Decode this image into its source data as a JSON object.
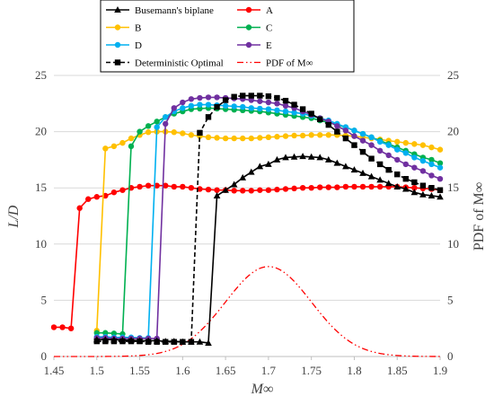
{
  "chart_data": {
    "type": "line",
    "xlabel": "M∞",
    "ylabel_left": "L/D",
    "ylabel_right": "PDF of M∞",
    "xlim": [
      1.45,
      1.9
    ],
    "ylim": [
      0,
      25
    ],
    "x_ticks": [
      "1.45",
      "1.5",
      "1.55",
      "1.6",
      "1.65",
      "1.7",
      "1.75",
      "1.8",
      "1.85",
      "1.9"
    ],
    "y_ticks": [
      "0",
      "5",
      "10",
      "15",
      "20",
      "25"
    ],
    "grid": "horizontal",
    "legend_position": "top-center",
    "series": [
      {
        "name": "Busemann's biplane",
        "color": "#000000",
        "marker": "triangle",
        "dash": "solid",
        "points": [
          [
            1.5,
            1.5
          ],
          [
            1.51,
            1.5
          ],
          [
            1.52,
            1.5
          ],
          [
            1.53,
            1.45
          ],
          [
            1.54,
            1.45
          ],
          [
            1.55,
            1.4
          ],
          [
            1.56,
            1.4
          ],
          [
            1.57,
            1.4
          ],
          [
            1.58,
            1.35
          ],
          [
            1.59,
            1.35
          ],
          [
            1.6,
            1.3
          ],
          [
            1.61,
            1.3
          ],
          [
            1.62,
            1.3
          ],
          [
            1.63,
            1.2
          ],
          [
            1.64,
            14.3
          ],
          [
            1.65,
            14.8
          ],
          [
            1.66,
            15.3
          ],
          [
            1.67,
            15.9
          ],
          [
            1.68,
            16.4
          ],
          [
            1.69,
            16.9
          ],
          [
            1.7,
            17.1
          ],
          [
            1.71,
            17.5
          ],
          [
            1.72,
            17.7
          ],
          [
            1.73,
            17.75
          ],
          [
            1.74,
            17.8
          ],
          [
            1.75,
            17.75
          ],
          [
            1.76,
            17.7
          ],
          [
            1.77,
            17.5
          ],
          [
            1.78,
            17.2
          ],
          [
            1.79,
            16.9
          ],
          [
            1.8,
            16.6
          ],
          [
            1.81,
            16.3
          ],
          [
            1.82,
            16.0
          ],
          [
            1.83,
            15.7
          ],
          [
            1.84,
            15.4
          ],
          [
            1.85,
            15.1
          ],
          [
            1.86,
            14.9
          ],
          [
            1.87,
            14.6
          ],
          [
            1.88,
            14.4
          ],
          [
            1.89,
            14.3
          ],
          [
            1.9,
            14.2
          ]
        ]
      },
      {
        "name": "A",
        "color": "#ff0000",
        "marker": "circle",
        "dash": "solid",
        "points": [
          [
            1.45,
            2.6
          ],
          [
            1.46,
            2.6
          ],
          [
            1.47,
            2.5
          ],
          [
            1.48,
            13.2
          ],
          [
            1.49,
            14.0
          ],
          [
            1.5,
            14.2
          ],
          [
            1.51,
            14.3
          ],
          [
            1.52,
            14.6
          ],
          [
            1.53,
            14.8
          ],
          [
            1.54,
            15.0
          ],
          [
            1.55,
            15.1
          ],
          [
            1.56,
            15.2
          ],
          [
            1.57,
            15.2
          ],
          [
            1.58,
            15.2
          ],
          [
            1.59,
            15.1
          ],
          [
            1.6,
            15.1
          ],
          [
            1.61,
            15.0
          ],
          [
            1.62,
            14.9
          ],
          [
            1.63,
            14.85
          ],
          [
            1.64,
            14.8
          ],
          [
            1.65,
            14.8
          ],
          [
            1.66,
            14.75
          ],
          [
            1.67,
            14.75
          ],
          [
            1.68,
            14.75
          ],
          [
            1.69,
            14.8
          ],
          [
            1.7,
            14.8
          ],
          [
            1.71,
            14.85
          ],
          [
            1.72,
            14.9
          ],
          [
            1.73,
            14.95
          ],
          [
            1.74,
            15.0
          ],
          [
            1.75,
            15.0
          ],
          [
            1.76,
            15.05
          ],
          [
            1.77,
            15.05
          ],
          [
            1.78,
            15.05
          ],
          [
            1.79,
            15.1
          ],
          [
            1.8,
            15.1
          ],
          [
            1.81,
            15.1
          ],
          [
            1.82,
            15.1
          ],
          [
            1.83,
            15.1
          ],
          [
            1.84,
            15.1
          ],
          [
            1.85,
            15.1
          ],
          [
            1.86,
            15.05
          ],
          [
            1.87,
            15.0
          ],
          [
            1.88,
            14.95
          ],
          [
            1.89,
            14.9
          ],
          [
            1.9,
            14.8
          ]
        ]
      },
      {
        "name": "B",
        "color": "#ffc000",
        "marker": "circle",
        "dash": "solid",
        "points": [
          [
            1.5,
            2.3
          ],
          [
            1.51,
            18.5
          ],
          [
            1.52,
            18.7
          ],
          [
            1.53,
            19.0
          ],
          [
            1.54,
            19.4
          ],
          [
            1.55,
            19.7
          ],
          [
            1.56,
            19.95
          ],
          [
            1.57,
            20.0
          ],
          [
            1.58,
            20.0
          ],
          [
            1.59,
            19.95
          ],
          [
            1.6,
            19.85
          ],
          [
            1.61,
            19.7
          ],
          [
            1.62,
            19.6
          ],
          [
            1.63,
            19.5
          ],
          [
            1.64,
            19.45
          ],
          [
            1.65,
            19.4
          ],
          [
            1.66,
            19.4
          ],
          [
            1.67,
            19.4
          ],
          [
            1.68,
            19.4
          ],
          [
            1.69,
            19.45
          ],
          [
            1.7,
            19.5
          ],
          [
            1.71,
            19.55
          ],
          [
            1.72,
            19.6
          ],
          [
            1.73,
            19.65
          ],
          [
            1.74,
            19.65
          ],
          [
            1.75,
            19.7
          ],
          [
            1.76,
            19.7
          ],
          [
            1.77,
            19.7
          ],
          [
            1.78,
            19.7
          ],
          [
            1.79,
            19.65
          ],
          [
            1.8,
            19.6
          ],
          [
            1.81,
            19.5
          ],
          [
            1.82,
            19.4
          ],
          [
            1.83,
            19.3
          ],
          [
            1.84,
            19.2
          ],
          [
            1.85,
            19.1
          ],
          [
            1.86,
            19.0
          ],
          [
            1.87,
            18.9
          ],
          [
            1.88,
            18.8
          ],
          [
            1.89,
            18.6
          ],
          [
            1.9,
            18.4
          ]
        ]
      },
      {
        "name": "C",
        "color": "#00b050",
        "marker": "circle",
        "dash": "solid",
        "points": [
          [
            1.5,
            2.1
          ],
          [
            1.51,
            2.1
          ],
          [
            1.52,
            2.05
          ],
          [
            1.53,
            2.0
          ],
          [
            1.54,
            18.7
          ],
          [
            1.55,
            20.0
          ],
          [
            1.56,
            20.5
          ],
          [
            1.57,
            20.9
          ],
          [
            1.58,
            21.3
          ],
          [
            1.59,
            21.6
          ],
          [
            1.6,
            21.8
          ],
          [
            1.61,
            22.0
          ],
          [
            1.62,
            22.05
          ],
          [
            1.63,
            22.1
          ],
          [
            1.64,
            22.05
          ],
          [
            1.65,
            22.0
          ],
          [
            1.66,
            21.95
          ],
          [
            1.67,
            21.9
          ],
          [
            1.68,
            21.85
          ],
          [
            1.69,
            21.8
          ],
          [
            1.7,
            21.7
          ],
          [
            1.71,
            21.6
          ],
          [
            1.72,
            21.5
          ],
          [
            1.73,
            21.4
          ],
          [
            1.74,
            21.3
          ],
          [
            1.75,
            21.2
          ],
          [
            1.76,
            21.0
          ],
          [
            1.77,
            20.8
          ],
          [
            1.78,
            20.6
          ],
          [
            1.79,
            20.4
          ],
          [
            1.8,
            20.1
          ],
          [
            1.81,
            19.8
          ],
          [
            1.82,
            19.5
          ],
          [
            1.83,
            19.2
          ],
          [
            1.84,
            18.9
          ],
          [
            1.85,
            18.6
          ],
          [
            1.86,
            18.3
          ],
          [
            1.87,
            18.0
          ],
          [
            1.88,
            17.7
          ],
          [
            1.89,
            17.5
          ],
          [
            1.9,
            17.2
          ]
        ]
      },
      {
        "name": "D",
        "color": "#00b0f0",
        "marker": "circle",
        "dash": "solid",
        "points": [
          [
            1.5,
            1.75
          ],
          [
            1.51,
            1.75
          ],
          [
            1.52,
            1.7
          ],
          [
            1.53,
            1.7
          ],
          [
            1.54,
            1.7
          ],
          [
            1.55,
            1.65
          ],
          [
            1.56,
            1.65
          ],
          [
            1.57,
            20.4
          ],
          [
            1.58,
            21.3
          ],
          [
            1.59,
            21.8
          ],
          [
            1.6,
            22.1
          ],
          [
            1.61,
            22.3
          ],
          [
            1.62,
            22.4
          ],
          [
            1.63,
            22.4
          ],
          [
            1.64,
            22.35
          ],
          [
            1.65,
            22.3
          ],
          [
            1.66,
            22.25
          ],
          [
            1.67,
            22.2
          ],
          [
            1.68,
            22.1
          ],
          [
            1.69,
            22.05
          ],
          [
            1.7,
            22.0
          ],
          [
            1.71,
            21.9
          ],
          [
            1.72,
            21.8
          ],
          [
            1.73,
            21.7
          ],
          [
            1.74,
            21.6
          ],
          [
            1.75,
            21.4
          ],
          [
            1.76,
            21.2
          ],
          [
            1.77,
            21.0
          ],
          [
            1.78,
            20.7
          ],
          [
            1.79,
            20.4
          ],
          [
            1.8,
            20.1
          ],
          [
            1.81,
            19.8
          ],
          [
            1.82,
            19.5
          ],
          [
            1.83,
            19.1
          ],
          [
            1.84,
            18.8
          ],
          [
            1.85,
            18.4
          ],
          [
            1.86,
            18.1
          ],
          [
            1.87,
            17.7
          ],
          [
            1.88,
            17.4
          ],
          [
            1.89,
            17.1
          ],
          [
            1.9,
            16.8
          ]
        ]
      },
      {
        "name": "E",
        "color": "#7030a0",
        "marker": "circle",
        "dash": "solid",
        "points": [
          [
            1.5,
            1.65
          ],
          [
            1.51,
            1.65
          ],
          [
            1.52,
            1.6
          ],
          [
            1.53,
            1.6
          ],
          [
            1.54,
            1.6
          ],
          [
            1.55,
            1.6
          ],
          [
            1.56,
            1.6
          ],
          [
            1.57,
            1.6
          ],
          [
            1.58,
            20.7
          ],
          [
            1.59,
            22.1
          ],
          [
            1.6,
            22.6
          ],
          [
            1.61,
            22.9
          ],
          [
            1.62,
            23.0
          ],
          [
            1.63,
            23.05
          ],
          [
            1.64,
            23.05
          ],
          [
            1.65,
            23.0
          ],
          [
            1.66,
            22.95
          ],
          [
            1.67,
            22.9
          ],
          [
            1.68,
            22.8
          ],
          [
            1.69,
            22.7
          ],
          [
            1.7,
            22.6
          ],
          [
            1.71,
            22.5
          ],
          [
            1.72,
            22.3
          ],
          [
            1.73,
            22.1
          ],
          [
            1.74,
            21.8
          ],
          [
            1.75,
            21.5
          ],
          [
            1.76,
            21.2
          ],
          [
            1.77,
            20.9
          ],
          [
            1.78,
            20.5
          ],
          [
            1.79,
            20.1
          ],
          [
            1.8,
            19.6
          ],
          [
            1.81,
            19.2
          ],
          [
            1.82,
            18.8
          ],
          [
            1.83,
            18.3
          ],
          [
            1.84,
            17.9
          ],
          [
            1.85,
            17.5
          ],
          [
            1.86,
            17.1
          ],
          [
            1.87,
            16.8
          ],
          [
            1.88,
            16.5
          ],
          [
            1.89,
            16.1
          ],
          [
            1.9,
            15.8
          ]
        ]
      },
      {
        "name": "Deterministic Optimal",
        "color": "#000000",
        "marker": "square",
        "dash": "dashed",
        "points": [
          [
            1.5,
            1.35
          ],
          [
            1.51,
            1.35
          ],
          [
            1.52,
            1.35
          ],
          [
            1.53,
            1.35
          ],
          [
            1.54,
            1.35
          ],
          [
            1.55,
            1.35
          ],
          [
            1.56,
            1.3
          ],
          [
            1.57,
            1.3
          ],
          [
            1.58,
            1.3
          ],
          [
            1.59,
            1.3
          ],
          [
            1.6,
            1.3
          ],
          [
            1.61,
            1.3
          ],
          [
            1.62,
            19.9
          ],
          [
            1.63,
            21.3
          ],
          [
            1.64,
            22.2
          ],
          [
            1.65,
            22.8
          ],
          [
            1.66,
            23.1
          ],
          [
            1.67,
            23.2
          ],
          [
            1.68,
            23.2
          ],
          [
            1.69,
            23.2
          ],
          [
            1.7,
            23.15
          ],
          [
            1.71,
            23.0
          ],
          [
            1.72,
            22.75
          ],
          [
            1.73,
            22.4
          ],
          [
            1.74,
            22.0
          ],
          [
            1.75,
            21.6
          ],
          [
            1.76,
            21.1
          ],
          [
            1.77,
            20.6
          ],
          [
            1.78,
            20.0
          ],
          [
            1.79,
            19.4
          ],
          [
            1.8,
            18.8
          ],
          [
            1.81,
            18.2
          ],
          [
            1.82,
            17.6
          ],
          [
            1.83,
            17.1
          ],
          [
            1.84,
            16.6
          ],
          [
            1.85,
            16.2
          ],
          [
            1.86,
            15.8
          ],
          [
            1.87,
            15.5
          ],
          [
            1.88,
            15.2
          ],
          [
            1.89,
            15.0
          ],
          [
            1.9,
            14.8
          ]
        ]
      },
      {
        "name": "PDF of M∞",
        "color": "#ff0000",
        "marker": "none",
        "dash": "dash-dot-dot",
        "pdf": {
          "mean": 1.7,
          "std": 0.05,
          "peak": 8.0,
          "range": [
            1.45,
            1.9
          ]
        }
      }
    ]
  }
}
